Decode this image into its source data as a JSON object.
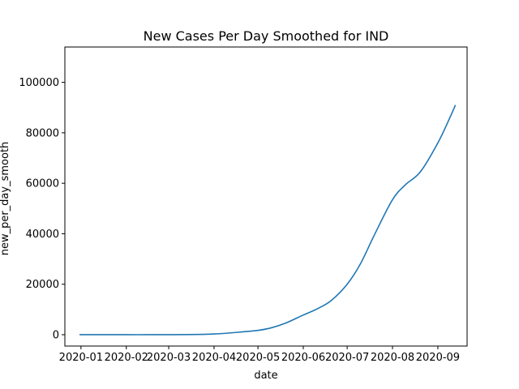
{
  "chart_data": {
    "type": "line",
    "title": "New Cases Per Day Smoothed for IND",
    "xlabel": "date",
    "ylabel": "new_per_day_smooth",
    "x_ticks": [
      "2020-01",
      "2020-02",
      "2020-03",
      "2020-04",
      "2020-05",
      "2020-06",
      "2020-07",
      "2020-08",
      "2020-09"
    ],
    "y_ticks": [
      0,
      20000,
      40000,
      60000,
      80000,
      100000
    ],
    "ylim": [
      -4500,
      114000
    ],
    "xlim": [
      "2019-12-21",
      "2020-09-21"
    ],
    "grid": false,
    "series": [
      {
        "color": "#1f77b4",
        "points": [
          [
            "2019-12-31",
            0
          ],
          [
            "2020-01-15",
            0
          ],
          [
            "2020-02-01",
            0
          ],
          [
            "2020-02-15",
            0
          ],
          [
            "2020-03-01",
            10
          ],
          [
            "2020-03-15",
            50
          ],
          [
            "2020-03-25",
            150
          ],
          [
            "2020-04-01",
            300
          ],
          [
            "2020-04-10",
            600
          ],
          [
            "2020-04-20",
            1100
          ],
          [
            "2020-05-01",
            1700
          ],
          [
            "2020-05-10",
            2700
          ],
          [
            "2020-05-20",
            4600
          ],
          [
            "2020-06-01",
            7800
          ],
          [
            "2020-06-10",
            10100
          ],
          [
            "2020-06-20",
            13500
          ],
          [
            "2020-07-01",
            20000
          ],
          [
            "2020-07-10",
            28000
          ],
          [
            "2020-07-20",
            40000
          ],
          [
            "2020-08-01",
            53500
          ],
          [
            "2020-08-10",
            59500
          ],
          [
            "2020-08-20",
            64500
          ],
          [
            "2020-09-01",
            76000
          ],
          [
            "2020-09-10",
            87000
          ],
          [
            "2020-09-13",
            91000
          ]
        ]
      }
    ]
  }
}
